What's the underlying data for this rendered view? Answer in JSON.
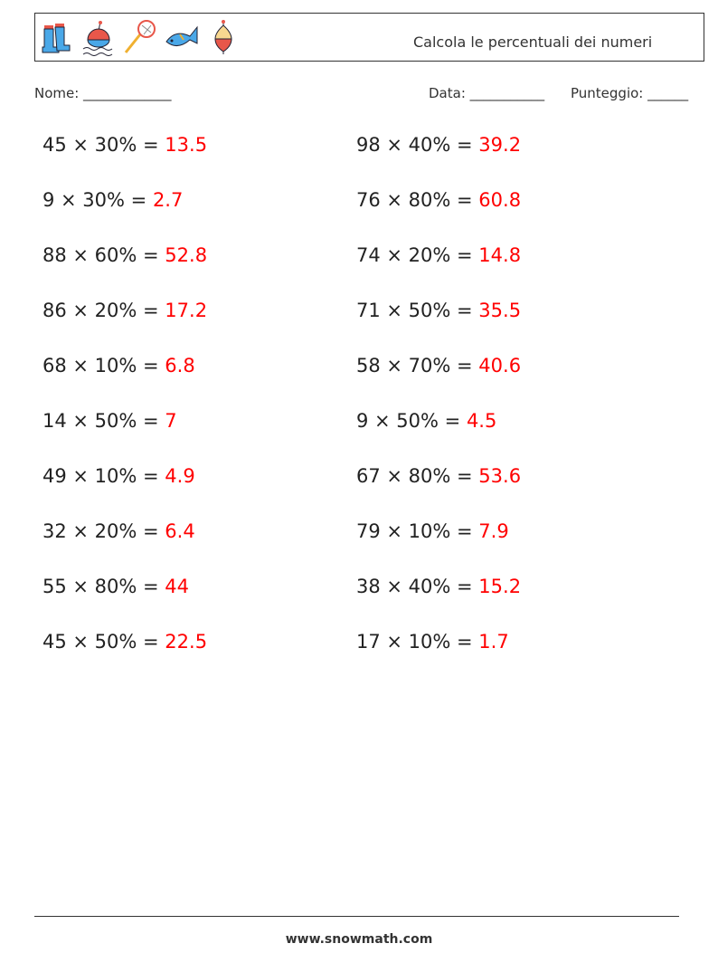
{
  "header": {
    "title": "Calcola le percentuali dei numeri",
    "icons": [
      "boots-icon",
      "fishing-bobber-water-icon",
      "fishing-net-icon",
      "fish-icon",
      "float-icon"
    ]
  },
  "fields": {
    "name": "Nome: _____________",
    "date": "Data: ___________",
    "score": "Punteggio: ______"
  },
  "problems": [
    {
      "q": "45 × 30% = ",
      "a": "13.5"
    },
    {
      "q": "98 × 40% = ",
      "a": "39.2"
    },
    {
      "q": "9 × 30% = ",
      "a": "2.7"
    },
    {
      "q": "76 × 80% = ",
      "a": "60.8"
    },
    {
      "q": "88 × 60% = ",
      "a": "52.8"
    },
    {
      "q": "74 × 20% = ",
      "a": "14.8"
    },
    {
      "q": "86 × 20% = ",
      "a": "17.2"
    },
    {
      "q": "71 × 50% = ",
      "a": "35.5"
    },
    {
      "q": "68 × 10% = ",
      "a": "6.8"
    },
    {
      "q": "58 × 70% = ",
      "a": "40.6"
    },
    {
      "q": "14 × 50% = ",
      "a": "7"
    },
    {
      "q": "9 × 50% = ",
      "a": "4.5"
    },
    {
      "q": "49 × 10% = ",
      "a": "4.9"
    },
    {
      "q": "67 × 80% = ",
      "a": "53.6"
    },
    {
      "q": "32 × 20% = ",
      "a": "6.4"
    },
    {
      "q": "79 × 10% = ",
      "a": "7.9"
    },
    {
      "q": "55 × 80% = ",
      "a": "44"
    },
    {
      "q": "38 × 40% = ",
      "a": "15.2"
    },
    {
      "q": "45 × 50% = ",
      "a": "22.5"
    },
    {
      "q": "17 × 10% = ",
      "a": "1.7"
    }
  ],
  "colors": {
    "answer": "#ff0000"
  },
  "footer": "www.snowmath.com"
}
